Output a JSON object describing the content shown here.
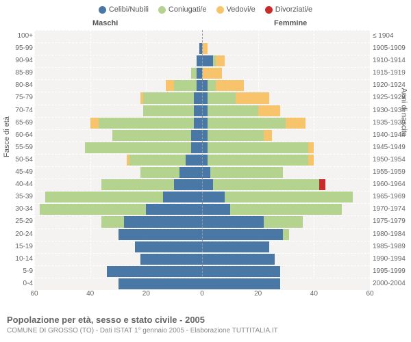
{
  "legend": [
    {
      "label": "Celibi/Nubili",
      "color": "#4a78a6"
    },
    {
      "label": "Coniugati/e",
      "color": "#b4d38e"
    },
    {
      "label": "Vedovi/e",
      "color": "#f7c36b"
    },
    {
      "label": "Divorziati/e",
      "color": "#c92a2a"
    }
  ],
  "header_male": "Maschi",
  "header_female": "Femmine",
  "axis_left_title": "Fasce di età",
  "axis_right_title": "Anni di nascita",
  "x_ticks": [
    60,
    40,
    20,
    0,
    20,
    40,
    60
  ],
  "x_max": 60,
  "age_labels": [
    "100+",
    "95-99",
    "90-94",
    "85-89",
    "80-84",
    "75-79",
    "70-74",
    "65-69",
    "60-64",
    "55-59",
    "50-54",
    "45-49",
    "40-44",
    "35-39",
    "30-34",
    "25-29",
    "20-24",
    "15-19",
    "10-14",
    "5-9",
    "0-4"
  ],
  "year_labels": [
    "≤ 1904",
    "1905-1909",
    "1910-1914",
    "1915-1919",
    "1920-1924",
    "1925-1929",
    "1930-1934",
    "1935-1939",
    "1940-1944",
    "1945-1949",
    "1950-1954",
    "1955-1959",
    "1960-1964",
    "1965-1969",
    "1970-1974",
    "1975-1979",
    "1980-1984",
    "1985-1989",
    "1990-1994",
    "1995-1999",
    "2000-2004"
  ],
  "bars": [
    {
      "m": {
        "cel": 0,
        "con": 0,
        "ved": 0,
        "div": 0
      },
      "f": {
        "cel": 0,
        "con": 0,
        "ved": 0,
        "div": 0
      }
    },
    {
      "m": {
        "cel": 1,
        "con": 0,
        "ved": 0,
        "div": 0
      },
      "f": {
        "cel": 0,
        "con": 0,
        "ved": 2,
        "div": 0
      }
    },
    {
      "m": {
        "cel": 2,
        "con": 0,
        "ved": 0,
        "div": 0
      },
      "f": {
        "cel": 4,
        "con": 1,
        "ved": 3,
        "div": 0
      }
    },
    {
      "m": {
        "cel": 2,
        "con": 2,
        "ved": 0,
        "div": 0
      },
      "f": {
        "cel": 0,
        "con": 0,
        "ved": 7,
        "div": 0
      }
    },
    {
      "m": {
        "cel": 2,
        "con": 8,
        "ved": 3,
        "div": 0
      },
      "f": {
        "cel": 2,
        "con": 3,
        "ved": 10,
        "div": 0
      }
    },
    {
      "m": {
        "cel": 3,
        "con": 18,
        "ved": 1,
        "div": 0
      },
      "f": {
        "cel": 2,
        "con": 10,
        "ved": 12,
        "div": 0
      }
    },
    {
      "m": {
        "cel": 3,
        "con": 18,
        "ved": 0,
        "div": 0
      },
      "f": {
        "cel": 2,
        "con": 18,
        "ved": 8,
        "div": 0
      }
    },
    {
      "m": {
        "cel": 3,
        "con": 34,
        "ved": 3,
        "div": 0
      },
      "f": {
        "cel": 2,
        "con": 28,
        "ved": 7,
        "div": 0
      }
    },
    {
      "m": {
        "cel": 4,
        "con": 28,
        "ved": 0,
        "div": 0
      },
      "f": {
        "cel": 2,
        "con": 20,
        "ved": 3,
        "div": 0
      }
    },
    {
      "m": {
        "cel": 4,
        "con": 38,
        "ved": 0,
        "div": 0
      },
      "f": {
        "cel": 2,
        "con": 36,
        "ved": 2,
        "div": 0
      }
    },
    {
      "m": {
        "cel": 6,
        "con": 20,
        "ved": 1,
        "div": 0
      },
      "f": {
        "cel": 2,
        "con": 36,
        "ved": 2,
        "div": 0
      }
    },
    {
      "m": {
        "cel": 8,
        "con": 14,
        "ved": 0,
        "div": 0
      },
      "f": {
        "cel": 3,
        "con": 26,
        "ved": 0,
        "div": 0
      }
    },
    {
      "m": {
        "cel": 10,
        "con": 26,
        "ved": 0,
        "div": 0
      },
      "f": {
        "cel": 4,
        "con": 38,
        "ved": 0,
        "div": 2
      }
    },
    {
      "m": {
        "cel": 14,
        "con": 42,
        "ved": 0,
        "div": 0
      },
      "f": {
        "cel": 8,
        "con": 46,
        "ved": 0,
        "div": 0
      }
    },
    {
      "m": {
        "cel": 20,
        "con": 38,
        "ved": 0,
        "div": 0
      },
      "f": {
        "cel": 10,
        "con": 40,
        "ved": 0,
        "div": 0
      }
    },
    {
      "m": {
        "cel": 28,
        "con": 8,
        "ved": 0,
        "div": 0
      },
      "f": {
        "cel": 22,
        "con": 14,
        "ved": 0,
        "div": 0
      }
    },
    {
      "m": {
        "cel": 30,
        "con": 0,
        "ved": 0,
        "div": 0
      },
      "f": {
        "cel": 29,
        "con": 2,
        "ved": 0,
        "div": 0
      }
    },
    {
      "m": {
        "cel": 24,
        "con": 0,
        "ved": 0,
        "div": 0
      },
      "f": {
        "cel": 24,
        "con": 0,
        "ved": 0,
        "div": 0
      }
    },
    {
      "m": {
        "cel": 22,
        "con": 0,
        "ved": 0,
        "div": 0
      },
      "f": {
        "cel": 26,
        "con": 0,
        "ved": 0,
        "div": 0
      }
    },
    {
      "m": {
        "cel": 34,
        "con": 0,
        "ved": 0,
        "div": 0
      },
      "f": {
        "cel": 28,
        "con": 0,
        "ved": 0,
        "div": 0
      }
    },
    {
      "m": {
        "cel": 30,
        "con": 0,
        "ved": 0,
        "div": 0
      },
      "f": {
        "cel": 28,
        "con": 0,
        "ved": 0,
        "div": 0
      }
    }
  ],
  "colors": {
    "cel": "#4a78a6",
    "con": "#b4d38e",
    "ved": "#f7c36b",
    "div": "#c92a2a",
    "plot_bg": "#f5f3f1",
    "grid": "#ffffff"
  },
  "footer_title": "Popolazione per età, sesso e stato civile - 2005",
  "footer_sub": "COMUNE DI GROSSO (TO) - Dati ISTAT 1° gennaio 2005 - Elaborazione TUTTITALIA.IT"
}
